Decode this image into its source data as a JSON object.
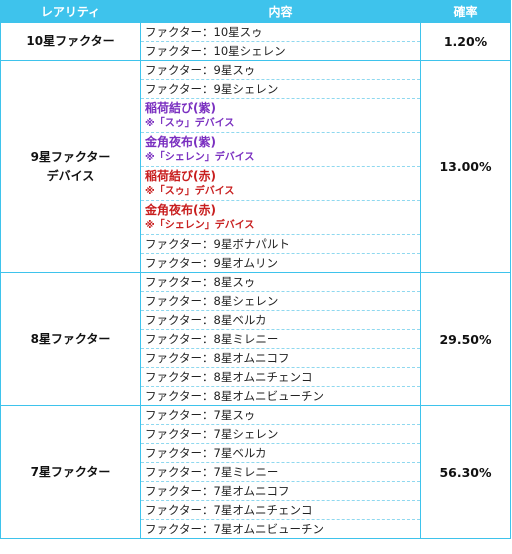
{
  "header": {
    "rarity": "レアリティ",
    "content": "内容",
    "rate": "確率"
  },
  "rows": [
    {
      "category": [
        "10星ファクター"
      ],
      "rate": "1.20%",
      "items": [
        {
          "text": "ファクター：10星スゥ"
        },
        {
          "text": "ファクター：10星シェレン"
        }
      ]
    },
    {
      "category": [
        "9星ファクター",
        "デバイス"
      ],
      "rate": "13.00%",
      "items": [
        {
          "text": "ファクター：9星スゥ"
        },
        {
          "text": "ファクター：9星シェレン"
        },
        {
          "title": "稲荷結び(紫)",
          "note": "※「スゥ」デバイス",
          "color": "#7a2fc0"
        },
        {
          "title": "金角夜布(紫)",
          "note": "※「シェレン」デバイス",
          "color": "#7a2fc0"
        },
        {
          "title": "稲荷結び(赤)",
          "note": "※「スゥ」デバイス",
          "color": "#c81e1e"
        },
        {
          "title": "金角夜布(赤)",
          "note": "※「シェレン」デバイス",
          "color": "#c81e1e"
        },
        {
          "text": "ファクター：9星ボナパルト"
        },
        {
          "text": "ファクター：9星オムリン"
        }
      ]
    },
    {
      "category": [
        "8星ファクター"
      ],
      "rate": "29.50%",
      "items": [
        {
          "text": "ファクター：8星スゥ"
        },
        {
          "text": "ファクター：8星シェレン"
        },
        {
          "text": "ファクター：8星ベルカ"
        },
        {
          "text": "ファクター：8星ミレニー"
        },
        {
          "text": "ファクター：8星オムニコフ"
        },
        {
          "text": "ファクター：8星オムニチェンコ"
        },
        {
          "text": "ファクター：8星オムニビューチン"
        }
      ]
    },
    {
      "category": [
        "7星ファクター"
      ],
      "rate": "56.30%",
      "items": [
        {
          "text": "ファクター：7星スゥ"
        },
        {
          "text": "ファクター：7星シェレン"
        },
        {
          "text": "ファクター：7星ベルカ"
        },
        {
          "text": "ファクター：7星ミレニー"
        },
        {
          "text": "ファクター：7星オムニコフ"
        },
        {
          "text": "ファクター：7星オムニチェンコ"
        },
        {
          "text": "ファクター：7星オムニビューチン"
        }
      ]
    }
  ]
}
